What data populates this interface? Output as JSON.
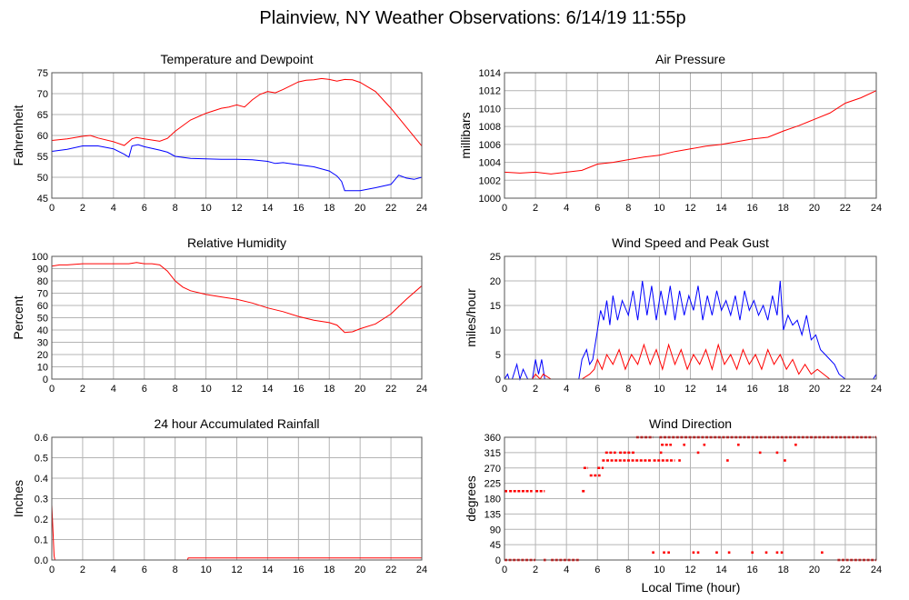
{
  "page": {
    "title": "Plainview, NY Weather Observations: 6/14/19 11:55p",
    "x_axis_label": "Local Time (hour)"
  },
  "colors": {
    "red": "#ff0000",
    "blue": "#0000ff",
    "grid": "#b4b4b4",
    "frame": "#555555"
  },
  "chart_data": [
    {
      "id": "temp",
      "type": "line",
      "title": "Temperature and Dewpoint",
      "ylabel": "Fahrenheit",
      "xlim": [
        0,
        24
      ],
      "ylim": [
        45,
        75
      ],
      "yticks": [
        45,
        50,
        55,
        60,
        65,
        70,
        75
      ],
      "xticks": [
        0,
        2,
        4,
        6,
        8,
        10,
        12,
        14,
        16,
        18,
        20,
        22,
        24
      ],
      "grid": true,
      "series": [
        {
          "color": "red",
          "x": [
            0,
            1,
            2,
            2.5,
            3,
            4,
            4.7,
            5.2,
            5.5,
            6,
            7,
            7.5,
            8,
            9,
            10,
            11,
            11.5,
            12,
            12.5,
            13,
            13.5,
            14,
            14.5,
            15,
            16,
            16.5,
            17,
            17.5,
            18,
            18.5,
            19,
            19.5,
            20,
            21,
            22,
            23,
            24
          ],
          "y": [
            58.8,
            59.2,
            59.8,
            60,
            59.4,
            58.5,
            57.6,
            59.2,
            59.5,
            59.2,
            58.6,
            59.3,
            61,
            63.7,
            65.3,
            66.5,
            66.8,
            67.3,
            66.8,
            68.5,
            69.8,
            70.5,
            70.2,
            71,
            72.8,
            73.2,
            73.3,
            73.6,
            73.4,
            73,
            73.4,
            73.3,
            72.7,
            70.5,
            66.5,
            62,
            57.5
          ]
        },
        {
          "color": "blue",
          "x": [
            0,
            1,
            2,
            3,
            4,
            4.7,
            5,
            5.2,
            5.6,
            6,
            7,
            7.5,
            8,
            9,
            10,
            11,
            12,
            13,
            14,
            14.5,
            15,
            16,
            17,
            18,
            18.5,
            18.8,
            19,
            20,
            21,
            22,
            22.5,
            23,
            23.5,
            24
          ],
          "y": [
            56.2,
            56.7,
            57.5,
            57.5,
            56.8,
            55.5,
            54.8,
            57.5,
            57.8,
            57.3,
            56.5,
            56,
            55,
            54.5,
            54.4,
            54.3,
            54.3,
            54.2,
            53.8,
            53.3,
            53.5,
            53,
            52.5,
            51.5,
            50.3,
            49,
            46.8,
            46.8,
            47.5,
            48.3,
            50.5,
            49.8,
            49.5,
            50
          ]
        }
      ]
    },
    {
      "id": "pressure",
      "type": "line",
      "title": "Air Pressure",
      "ylabel": "millibars",
      "xlim": [
        0,
        24
      ],
      "ylim": [
        1000,
        1014
      ],
      "yticks": [
        1000,
        1002,
        1004,
        1006,
        1008,
        1010,
        1012,
        1014
      ],
      "xticks": [
        0,
        2,
        4,
        6,
        8,
        10,
        12,
        14,
        16,
        18,
        20,
        22,
        24
      ],
      "grid": true,
      "series": [
        {
          "color": "red",
          "x": [
            0,
            1,
            2,
            3,
            4,
            5,
            6,
            7,
            8,
            9,
            10,
            11,
            12,
            13,
            14,
            15,
            16,
            17,
            18,
            19,
            20,
            21,
            22,
            23,
            24
          ],
          "y": [
            1002.9,
            1002.8,
            1002.9,
            1002.7,
            1002.9,
            1003.1,
            1003.8,
            1004.0,
            1004.3,
            1004.6,
            1004.8,
            1005.2,
            1005.5,
            1005.8,
            1006.0,
            1006.3,
            1006.6,
            1006.8,
            1007.5,
            1008.1,
            1008.8,
            1009.5,
            1010.6,
            1011.2,
            1012.0
          ]
        }
      ]
    },
    {
      "id": "humidity",
      "type": "line",
      "title": "Relative Humidity",
      "ylabel": "Percent",
      "xlim": [
        0,
        24
      ],
      "ylim": [
        0,
        100
      ],
      "yticks": [
        0,
        10,
        20,
        30,
        40,
        50,
        60,
        70,
        80,
        90,
        100
      ],
      "xticks": [
        0,
        2,
        4,
        6,
        8,
        10,
        12,
        14,
        16,
        18,
        20,
        22,
        24
      ],
      "grid": true,
      "series": [
        {
          "color": "red",
          "x": [
            0,
            0.5,
            1,
            2,
            3,
            4,
            5,
            5.5,
            6,
            6.5,
            7,
            7.5,
            8,
            8.5,
            9,
            10,
            11,
            12,
            13,
            14,
            15,
            16,
            17,
            18,
            18.5,
            19,
            19.5,
            20,
            21,
            22,
            23,
            24
          ],
          "y": [
            92,
            93,
            93,
            94,
            94,
            94,
            94,
            95,
            94,
            94,
            93,
            88,
            80,
            75,
            72,
            69,
            67,
            65,
            62,
            58,
            55,
            51,
            48,
            46,
            44,
            38,
            38.5,
            41,
            45,
            53,
            65,
            76
          ]
        }
      ]
    },
    {
      "id": "wind",
      "type": "line",
      "title": "Wind Speed and Peak Gust",
      "ylabel": "miles/hour",
      "xlim": [
        0,
        24
      ],
      "ylim": [
        0,
        25
      ],
      "yticks": [
        0,
        5,
        10,
        15,
        20,
        25
      ],
      "xticks": [
        0,
        2,
        4,
        6,
        8,
        10,
        12,
        14,
        16,
        18,
        20,
        22,
        24
      ],
      "grid": true,
      "series": [
        {
          "color": "blue",
          "x": [
            0,
            0.2,
            0.3,
            0.5,
            0.8,
            1.0,
            1.2,
            1.5,
            1.8,
            2.0,
            2.2,
            2.4,
            2.6,
            2.8,
            3.0,
            4.0,
            4.8,
            5.0,
            5.3,
            5.5,
            5.7,
            6.0,
            6.2,
            6.4,
            6.6,
            6.8,
            7.0,
            7.3,
            7.6,
            8.0,
            8.3,
            8.6,
            8.9,
            9.2,
            9.5,
            9.8,
            10.1,
            10.4,
            10.7,
            11.0,
            11.3,
            11.6,
            11.9,
            12.2,
            12.5,
            12.8,
            13.1,
            13.4,
            13.7,
            14.0,
            14.3,
            14.6,
            14.9,
            15.2,
            15.5,
            15.8,
            16.1,
            16.4,
            16.7,
            17.0,
            17.3,
            17.6,
            17.8,
            18.0,
            18.3,
            18.6,
            18.9,
            19.2,
            19.5,
            19.8,
            20.1,
            20.4,
            20.7,
            21.0,
            21.3,
            21.6,
            22.0,
            23.0,
            23.8,
            24.0
          ],
          "y": [
            0,
            1,
            0,
            0,
            3,
            0,
            2,
            0,
            0,
            4,
            1,
            4,
            0,
            0,
            0,
            0,
            0,
            4,
            6,
            3,
            4,
            10,
            14,
            12,
            16,
            11,
            17,
            12,
            16,
            13,
            18,
            12,
            20,
            13,
            19,
            12,
            18,
            13,
            19,
            12,
            18,
            13,
            17,
            14,
            19,
            12,
            17,
            13,
            18,
            14,
            16,
            13,
            17,
            12,
            18,
            14,
            16,
            13,
            15,
            12,
            17,
            13,
            20,
            10,
            13,
            11,
            12,
            9,
            13,
            8,
            9,
            6,
            5,
            4,
            3,
            1,
            0,
            0,
            0,
            1
          ]
        },
        {
          "color": "red",
          "x": [
            0,
            1.8,
            2.0,
            2.3,
            2.5,
            3.0,
            5.0,
            5.5,
            5.8,
            6.0,
            6.3,
            6.6,
            7.0,
            7.4,
            7.8,
            8.2,
            8.6,
            9.0,
            9.4,
            9.8,
            10.2,
            10.6,
            11.0,
            11.4,
            11.8,
            12.2,
            12.6,
            13.0,
            13.4,
            13.8,
            14.2,
            14.6,
            15.0,
            15.4,
            15.8,
            16.2,
            16.6,
            17.0,
            17.4,
            17.8,
            18.2,
            18.6,
            19.0,
            19.4,
            19.8,
            20.2,
            20.6,
            21.0,
            22.0,
            24.0
          ],
          "y": [
            0,
            0,
            1,
            0,
            1,
            0,
            0,
            1,
            2,
            4,
            2,
            5,
            3,
            6,
            2,
            5,
            3,
            7,
            3,
            6,
            2,
            7,
            3,
            6,
            2,
            5,
            3,
            6,
            2,
            7,
            3,
            5,
            2,
            6,
            3,
            5,
            2,
            6,
            3,
            5,
            2,
            4,
            1,
            3,
            1,
            2,
            1,
            0,
            0,
            0
          ]
        }
      ]
    },
    {
      "id": "rain",
      "type": "line",
      "title": "24 hour Accumulated Rainfall",
      "ylabel": "Inches",
      "xlim": [
        0,
        24
      ],
      "ylim": [
        0,
        0.6
      ],
      "yticks": [
        0.0,
        0.1,
        0.2,
        0.3,
        0.4,
        0.5,
        0.6
      ],
      "xticks": [
        0,
        2,
        4,
        6,
        8,
        10,
        12,
        14,
        16,
        18,
        20,
        22,
        24
      ],
      "grid": true,
      "series": [
        {
          "color": "red",
          "x": [
            0,
            0.15,
            0.2,
            8.8,
            8.85,
            24
          ],
          "y": [
            0.27,
            0.02,
            0.0,
            0.0,
            0.01,
            0.01
          ]
        }
      ]
    },
    {
      "id": "direction",
      "type": "scatter",
      "title": "Wind Direction",
      "ylabel": "degrees",
      "xlim": [
        0,
        24
      ],
      "ylim": [
        0,
        360
      ],
      "yticks": [
        0,
        45,
        90,
        135,
        180,
        225,
        270,
        315,
        360
      ],
      "xticks": [
        0,
        2,
        4,
        6,
        8,
        10,
        12,
        14,
        16,
        18,
        20,
        22,
        24
      ],
      "grid": true,
      "series": [
        {
          "color": "red",
          "runs": [
            {
              "y": 0,
              "x0": 0.0,
              "x1": 2.0
            },
            {
              "y": 0,
              "x0": 3.0,
              "x1": 4.8
            },
            {
              "y": 0,
              "x0": 21.5,
              "x1": 24.0
            },
            {
              "y": 202,
              "x0": 0.3,
              "x1": 1.8
            },
            {
              "y": 202,
              "x0": 2.0,
              "x1": 2.6
            },
            {
              "y": 202,
              "x0": 5.0,
              "x1": 5.2
            },
            {
              "y": 270,
              "x0": 5.1,
              "x1": 5.4
            },
            {
              "y": 248,
              "x0": 5.5,
              "x1": 6.2
            },
            {
              "y": 270,
              "x0": 6.0,
              "x1": 6.4
            },
            {
              "y": 292,
              "x0": 6.3,
              "x1": 9.5
            },
            {
              "y": 315,
              "x0": 6.5,
              "x1": 7.2
            },
            {
              "y": 315,
              "x0": 7.4,
              "x1": 8.4
            },
            {
              "y": 292,
              "x0": 9.6,
              "x1": 11.0
            },
            {
              "y": 360,
              "x0": 8.5,
              "x1": 9.6
            },
            {
              "y": 360,
              "x0": 10.0,
              "x1": 23.8
            },
            {
              "y": 338,
              "x0": 10.1,
              "x1": 10.8
            }
          ],
          "points": [
            {
              "x": 2.6,
              "y": 0
            },
            {
              "x": 0.1,
              "y": 202
            },
            {
              "x": 9.6,
              "y": 22
            },
            {
              "x": 10.3,
              "y": 22
            },
            {
              "x": 10.6,
              "y": 22
            },
            {
              "x": 12.2,
              "y": 22
            },
            {
              "x": 12.5,
              "y": 22
            },
            {
              "x": 13.7,
              "y": 22
            },
            {
              "x": 14.5,
              "y": 22
            },
            {
              "x": 16.0,
              "y": 22
            },
            {
              "x": 16.9,
              "y": 22
            },
            {
              "x": 17.6,
              "y": 22
            },
            {
              "x": 17.9,
              "y": 22
            },
            {
              "x": 20.5,
              "y": 22
            },
            {
              "x": 10.1,
              "y": 315
            },
            {
              "x": 11.3,
              "y": 292
            },
            {
              "x": 12.5,
              "y": 315
            },
            {
              "x": 14.4,
              "y": 292
            },
            {
              "x": 16.5,
              "y": 315
            },
            {
              "x": 17.6,
              "y": 315
            },
            {
              "x": 18.1,
              "y": 292
            },
            {
              "x": 18.8,
              "y": 338
            },
            {
              "x": 11.6,
              "y": 338
            },
            {
              "x": 12.9,
              "y": 338
            },
            {
              "x": 15.1,
              "y": 338
            },
            {
              "x": 24.0,
              "y": 360
            }
          ]
        }
      ]
    }
  ]
}
